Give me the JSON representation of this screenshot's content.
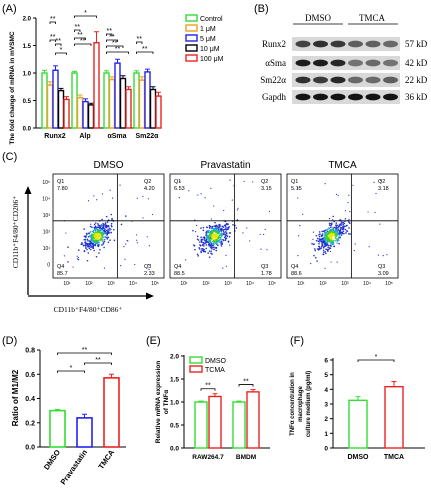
{
  "panel_labels": [
    "(A)",
    "(B)",
    "(C)",
    "(D)",
    "(E)",
    "(F)"
  ],
  "colors": {
    "control": "#33dd33",
    "c1": "#f0a020",
    "c5": "#2222ee",
    "c10": "#000000",
    "c100": "#ee2222",
    "dmso": "#33dd33",
    "pravastatin": "#2222ee",
    "tmca": "#ee2222"
  },
  "panelA": {
    "ylabel": "The fold change of mRNA in mVSMC",
    "ylim": [
      0,
      2.0
    ],
    "yticks": [
      "0.0",
      "0.5",
      "1.0",
      "1.5",
      "2.0"
    ],
    "legend": [
      "Control",
      "1 μM",
      "5 μM",
      "10 μM",
      "100 μM"
    ],
    "sig_labels": [
      "*",
      "**",
      "**",
      "**",
      "*",
      "**",
      "**",
      "**",
      "**",
      "**",
      "**",
      "**",
      "**",
      "**"
    ]
  },
  "panelB": {
    "headers": [
      "DMSO",
      "TMCA"
    ],
    "proteins": [
      "Runx2",
      "αSma",
      "Sm22α",
      "Gapdh"
    ],
    "sizes": [
      "57 kD",
      "42 kD",
      "22 kD",
      "36 kD"
    ]
  },
  "panelC": {
    "titles": [
      "DMSO",
      "Pravastatin",
      "TMCA"
    ],
    "yaxis_label": "CD11b⁺F4/80⁺CD206⁺",
    "xaxis_label": "CD11b⁺F4/80⁺CD86⁺",
    "ticks": [
      "10⁵",
      "10⁴",
      "10³",
      "10²",
      "10¹",
      "0"
    ],
    "xticks": [
      "10¹",
      "10²",
      "10³",
      "10⁴",
      "10⁵"
    ],
    "quadrants": [
      {
        "q1": "Q1",
        "v1": "7.80",
        "q2": "Q2",
        "v2": "4.20",
        "q4": "Q4",
        "v4": "85.7",
        "q3": "Q3",
        "v3": "2.33"
      },
      {
        "q1": "Q1",
        "v1": "6.53",
        "q2": "Q2",
        "v2": "3.15",
        "q4": "Q4",
        "v4": "88.5",
        "q3": "Q3",
        "v3": "1.78"
      },
      {
        "q1": "Q1",
        "v1": "5.15",
        "q2": "Q2",
        "v2": "3.18",
        "q4": "Q4",
        "v4": "88.6",
        "q3": "Q3",
        "v3": "3.09"
      }
    ]
  },
  "panelD": {
    "ylabel": "Ratio of M1/M2",
    "yticks": [
      "0.0",
      "0.2",
      "0.4",
      "0.6",
      "0.8"
    ],
    "sig_labels": [
      "**",
      "*",
      "**"
    ]
  },
  "panelE": {
    "ylabel": "Relative mRNA expression of TNFα",
    "yticks": [
      "0.0",
      "0.5",
      "1.0",
      "1.5",
      "2.0"
    ],
    "legend": [
      "DMSO",
      "TCMA"
    ],
    "sig_labels": [
      "**",
      "**"
    ]
  },
  "panelF": {
    "ylabel": "TNFα concentration in macrophage culture medium (pg/ml)",
    "yticks": [
      "0",
      "1",
      "2",
      "3",
      "4",
      "5",
      "6"
    ],
    "sig_labels": [
      "*"
    ]
  },
  "chart_data": [
    {
      "type": "bar",
      "panel": "A",
      "ylabel": "The fold change of mRNA in mVSMC",
      "ylim": [
        0,
        2.0
      ],
      "categories": [
        "Runx2",
        "Alp",
        "αSma",
        "Sm22α"
      ],
      "series": [
        {
          "name": "Control",
          "values": [
            1.0,
            1.0,
            1.0,
            1.0
          ],
          "errors": [
            0.05,
            0.03,
            0.04,
            0.04
          ]
        },
        {
          "name": "1 μM",
          "values": [
            0.78,
            0.55,
            0.88,
            0.87
          ],
          "errors": [
            0.06,
            0.05,
            0.05,
            0.06
          ]
        },
        {
          "name": "5 μM",
          "values": [
            1.05,
            0.48,
            1.18,
            1.02
          ],
          "errors": [
            0.08,
            0.05,
            0.07,
            0.05
          ]
        },
        {
          "name": "10 μM",
          "values": [
            0.68,
            0.42,
            0.9,
            0.7
          ],
          "errors": [
            0.04,
            0.03,
            0.05,
            0.05
          ]
        },
        {
          "name": "100 μM",
          "values": [
            0.52,
            1.55,
            0.7,
            0.58
          ],
          "errors": [
            0.05,
            0.2,
            0.05,
            0.07
          ]
        }
      ]
    },
    {
      "type": "bar",
      "panel": "D",
      "ylabel": "Ratio of M1/M2",
      "ylim": [
        0,
        0.8
      ],
      "categories": [
        "DMSO",
        "Pravastatin",
        "TMCA"
      ],
      "values": [
        0.3,
        0.24,
        0.57
      ],
      "errors": [
        0.01,
        0.03,
        0.03
      ]
    },
    {
      "type": "bar",
      "panel": "E",
      "ylabel": "Relative mRNA expression of TNFα",
      "ylim": [
        0,
        2.0
      ],
      "categories": [
        "RAW264.7",
        "BMDM"
      ],
      "series": [
        {
          "name": "DMSO",
          "values": [
            1.0,
            1.0
          ],
          "errors": [
            0.02,
            0.02
          ]
        },
        {
          "name": "TCMA",
          "values": [
            1.12,
            1.22
          ],
          "errors": [
            0.06,
            0.05
          ]
        }
      ]
    },
    {
      "type": "bar",
      "panel": "F",
      "ylabel": "TNFα concentration in macrophage culture medium (pg/ml)",
      "ylim": [
        0,
        6
      ],
      "categories": [
        "DMSO",
        "TMCA"
      ],
      "values": [
        3.25,
        4.18
      ],
      "errors": [
        0.25,
        0.35
      ]
    }
  ]
}
